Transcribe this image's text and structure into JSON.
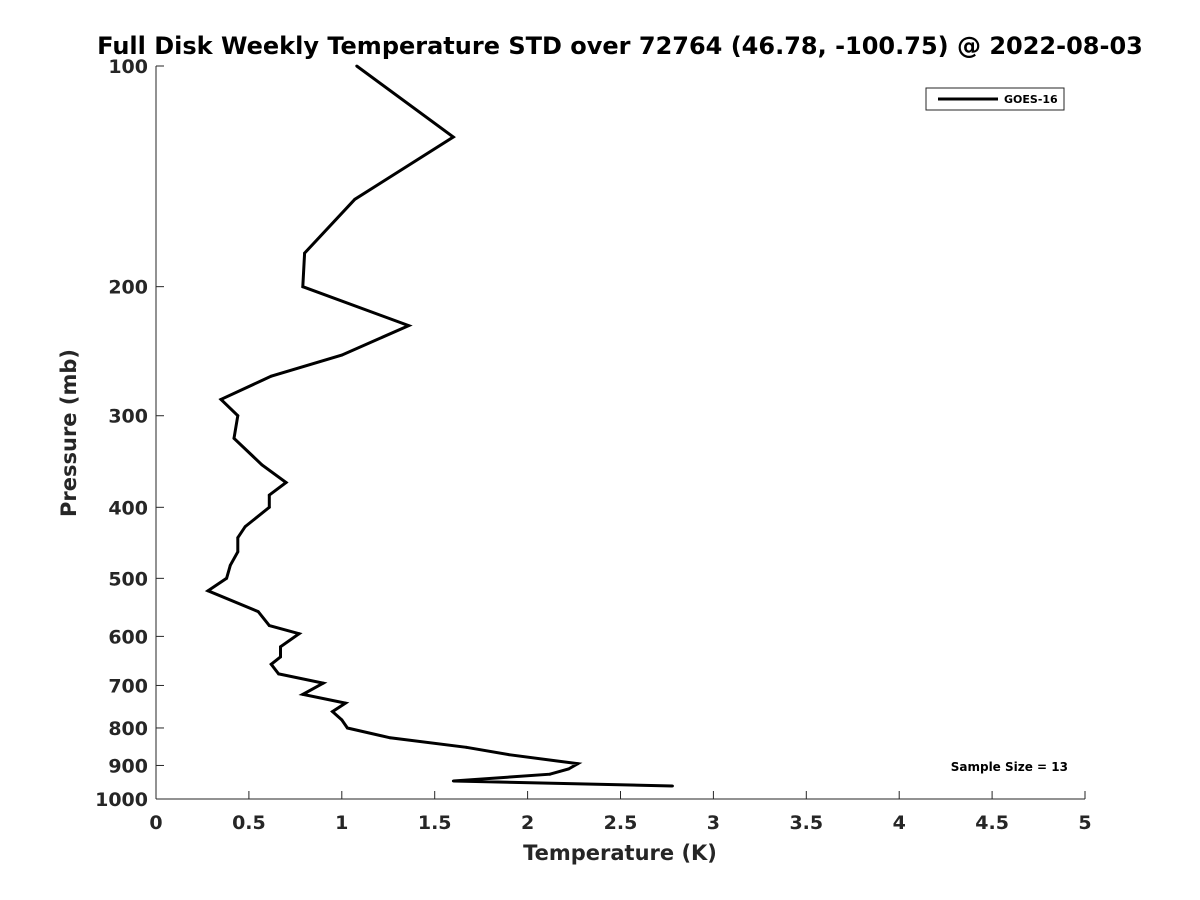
{
  "chart_data": {
    "type": "line",
    "title": "Full Disk Weekly Temperature STD over 72764 (46.78, -100.75) @ 2022-08-03",
    "xlabel": "Temperature (K)",
    "ylabel": "Pressure (mb)",
    "xlim": [
      0,
      5
    ],
    "ylim": [
      100,
      1000
    ],
    "y_scale": "log",
    "y_reversed": true,
    "x_ticks": [
      0,
      0.5,
      1,
      1.5,
      2,
      2.5,
      3,
      3.5,
      4,
      4.5,
      5
    ],
    "x_tick_labels": [
      "0",
      "0.5",
      "1",
      "1.5",
      "2",
      "2.5",
      "3",
      "3.5",
      "4",
      "4.5",
      "5"
    ],
    "y_ticks": [
      100,
      200,
      300,
      400,
      500,
      600,
      700,
      800,
      900,
      1000
    ],
    "y_tick_labels": [
      "100",
      "200",
      "300",
      "400",
      "500",
      "600",
      "700",
      "800",
      "900",
      "1000"
    ],
    "grid": false,
    "legend": {
      "position": "top-right",
      "entries": [
        "GOES-16"
      ]
    },
    "annotations": [
      {
        "text": "Sample Size = 13",
        "position": "bottom-right"
      }
    ],
    "series": [
      {
        "name": "GOES-16",
        "color": "#000000",
        "points": [
          [
            1.08,
            100
          ],
          [
            1.6,
            125
          ],
          [
            1.07,
            152
          ],
          [
            0.8,
            180
          ],
          [
            0.79,
            200
          ],
          [
            1.36,
            226
          ],
          [
            1.0,
            248
          ],
          [
            0.62,
            265
          ],
          [
            0.35,
            285
          ],
          [
            0.44,
            300
          ],
          [
            0.42,
            322
          ],
          [
            0.57,
            350
          ],
          [
            0.7,
            370
          ],
          [
            0.61,
            385
          ],
          [
            0.61,
            400
          ],
          [
            0.48,
            425
          ],
          [
            0.44,
            440
          ],
          [
            0.44,
            460
          ],
          [
            0.4,
            480
          ],
          [
            0.38,
            500
          ],
          [
            0.28,
            520
          ],
          [
            0.55,
            555
          ],
          [
            0.61,
            580
          ],
          [
            0.77,
            595
          ],
          [
            0.67,
            620
          ],
          [
            0.67,
            640
          ],
          [
            0.62,
            655
          ],
          [
            0.66,
            675
          ],
          [
            0.9,
            695
          ],
          [
            0.79,
            720
          ],
          [
            1.02,
            740
          ],
          [
            0.95,
            760
          ],
          [
            1.0,
            780
          ],
          [
            1.03,
            800
          ],
          [
            1.26,
            825
          ],
          [
            1.67,
            850
          ],
          [
            1.9,
            870
          ],
          [
            2.27,
            895
          ],
          [
            2.22,
            910
          ],
          [
            2.12,
            925
          ],
          [
            1.6,
            945
          ],
          [
            2.78,
            960
          ]
        ]
      }
    ]
  }
}
